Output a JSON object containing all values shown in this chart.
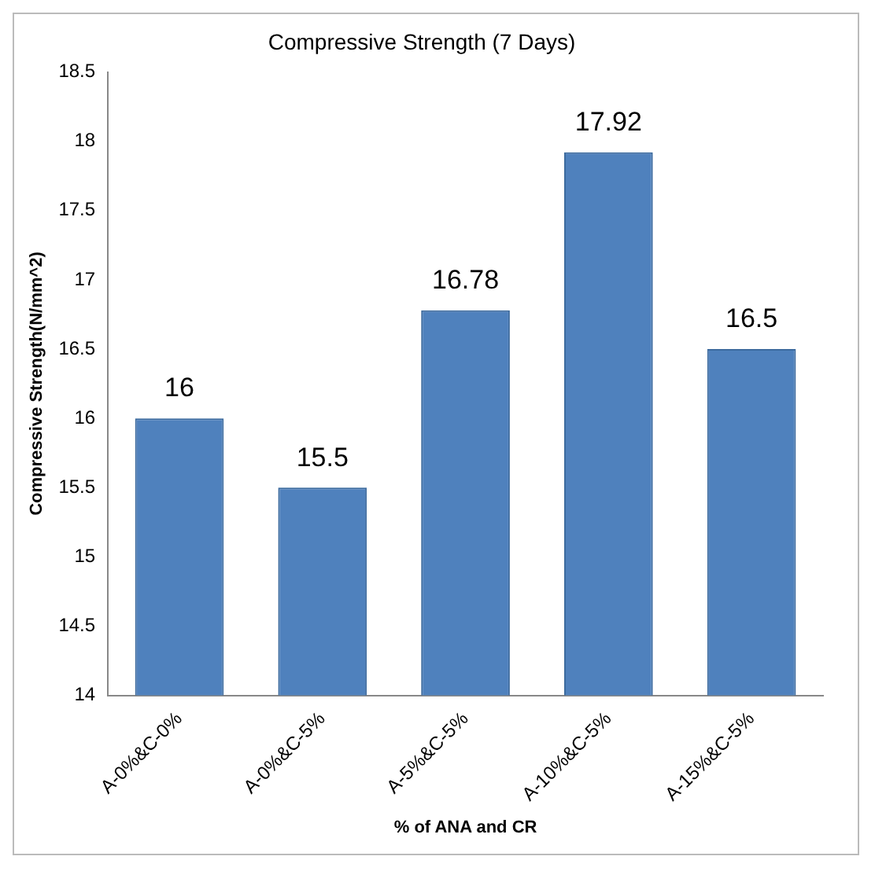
{
  "chart_data": {
    "type": "bar",
    "title": "Compressive Strength (7 Days)",
    "xlabel": "% of ANA and CR",
    "ylabel": "Compressive Strength(N/mm^2)",
    "categories": [
      "A-0%&C-0%",
      "A-0%&C-5%",
      "A-5%&C-5%",
      "A-10%&C-5%",
      "A-15%&C-5%"
    ],
    "values": [
      16,
      15.5,
      16.78,
      17.92,
      16.5
    ],
    "color": "#4f81bd",
    "ylim": [
      14,
      18.5
    ],
    "yticks": [
      14,
      14.5,
      15,
      15.5,
      16,
      16.5,
      17,
      17.5,
      18,
      18.5
    ],
    "grid": false,
    "legend": false,
    "data_labels": true
  }
}
